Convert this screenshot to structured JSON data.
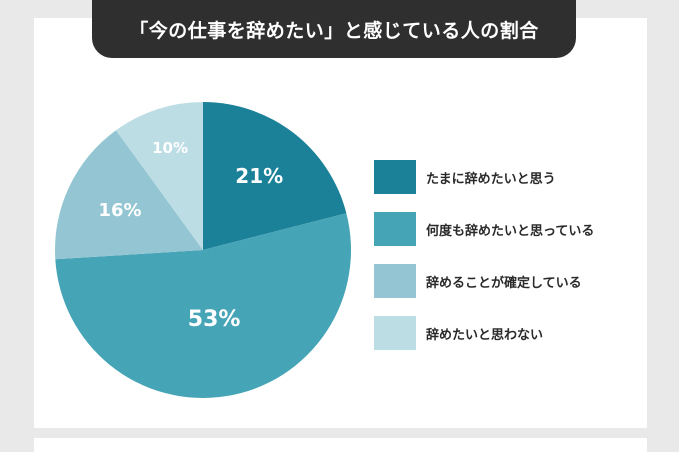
{
  "chart_data": {
    "type": "pie",
    "title": "「今の仕事を辞めたい」と感じている人の割合",
    "categories": [
      "たまに辞めたいと思う",
      "何度も辞めたいと思っている",
      "辞めることが確定している",
      "辞めたいと思わない"
    ],
    "values": [
      21,
      53,
      16,
      10
    ],
    "labels": [
      "21%",
      "53%",
      "16%",
      "10%"
    ],
    "colors": [
      "#1a8198",
      "#46a4b7",
      "#93c6d2",
      "#bddde4"
    ],
    "label_colors": [
      "#ffffff",
      "#ffffff",
      "#ffffff",
      "#2e8ea3"
    ],
    "start": "12 o'clock, clockwise",
    "legend": "right"
  }
}
